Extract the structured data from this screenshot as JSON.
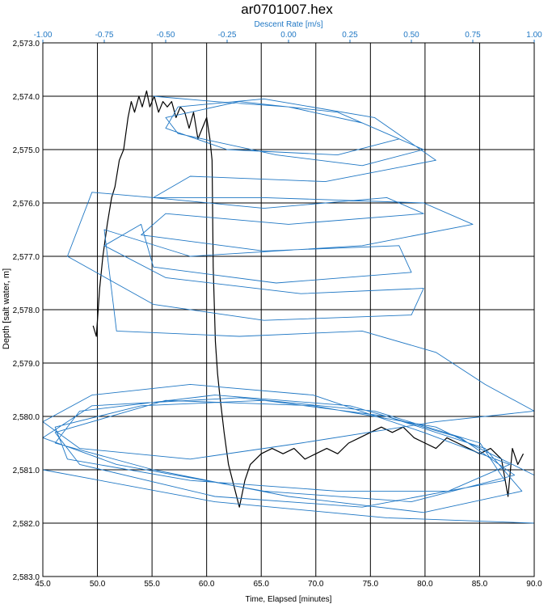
{
  "chart_data": {
    "type": "line",
    "title": "ar0701007.hex",
    "xlabel": "Time, Elapsed [minutes]",
    "ylabel": "Depth [salt water, m]",
    "x2label": "Descent Rate [m/s]",
    "xlim": [
      45.0,
      90.0
    ],
    "ylim": [
      2573.0,
      2583.0
    ],
    "y_inverted": true,
    "x2lim": [
      -1.0,
      1.0
    ],
    "xticks": [
      "45.0",
      "50.0",
      "55.0",
      "60.0",
      "65.0",
      "70.0",
      "75.0",
      "80.0",
      "85.0",
      "90.0"
    ],
    "yticks": [
      "2,573.0",
      "2,574.0",
      "2,575.0",
      "2,576.0",
      "2,577.0",
      "2,578.0",
      "2,579.0",
      "2,580.0",
      "2,581.0",
      "2,582.0",
      "2,583.0"
    ],
    "x2ticks": [
      "-1.00",
      "-0.75",
      "-0.50",
      "-0.25",
      "0.00",
      "0.25",
      "0.50",
      "0.75",
      "1.00"
    ],
    "grid": true,
    "series": [
      {
        "color": "#000000",
        "axis": "bottom",
        "points": [
          [
            49.6,
            2578.3
          ],
          [
            49.9,
            2578.5
          ],
          [
            50.2,
            2577.6
          ],
          [
            50.5,
            2577.0
          ],
          [
            50.9,
            2576.4
          ],
          [
            51.3,
            2575.9
          ],
          [
            51.6,
            2575.7
          ],
          [
            52.0,
            2575.2
          ],
          [
            52.4,
            2575.0
          ],
          [
            52.8,
            2574.4
          ],
          [
            53.1,
            2574.1
          ],
          [
            53.4,
            2574.3
          ],
          [
            53.8,
            2574.0
          ],
          [
            54.1,
            2574.2
          ],
          [
            54.5,
            2573.9
          ],
          [
            54.8,
            2574.2
          ],
          [
            55.2,
            2574.0
          ],
          [
            55.6,
            2574.3
          ],
          [
            56.0,
            2574.1
          ],
          [
            56.4,
            2574.2
          ],
          [
            56.8,
            2574.1
          ],
          [
            57.2,
            2574.4
          ],
          [
            57.6,
            2574.2
          ],
          [
            58.0,
            2574.3
          ],
          [
            58.4,
            2574.6
          ],
          [
            58.8,
            2574.3
          ],
          [
            59.2,
            2574.8
          ],
          [
            59.6,
            2574.6
          ],
          [
            60.0,
            2574.4
          ],
          [
            60.3,
            2574.8
          ],
          [
            60.5,
            2575.2
          ],
          [
            60.6,
            2577.2
          ],
          [
            60.8,
            2578.6
          ],
          [
            61.0,
            2579.2
          ],
          [
            61.2,
            2579.6
          ],
          [
            61.6,
            2580.3
          ],
          [
            62.0,
            2580.9
          ],
          [
            62.5,
            2581.3
          ],
          [
            63.0,
            2581.7
          ],
          [
            63.5,
            2581.2
          ],
          [
            64.0,
            2580.9
          ],
          [
            65.0,
            2580.7
          ],
          [
            66.0,
            2580.6
          ],
          [
            67.0,
            2580.7
          ],
          [
            68.0,
            2580.6
          ],
          [
            69.0,
            2580.8
          ],
          [
            70.0,
            2580.7
          ],
          [
            71.0,
            2580.6
          ],
          [
            72.0,
            2580.7
          ],
          [
            73.0,
            2580.5
          ],
          [
            74.0,
            2580.4
          ],
          [
            75.0,
            2580.3
          ],
          [
            76.0,
            2580.2
          ],
          [
            77.0,
            2580.3
          ],
          [
            78.0,
            2580.2
          ],
          [
            79.0,
            2580.4
          ],
          [
            80.0,
            2580.5
          ],
          [
            81.0,
            2580.6
          ],
          [
            82.0,
            2580.4
          ],
          [
            83.0,
            2580.5
          ],
          [
            84.0,
            2580.6
          ],
          [
            85.0,
            2580.7
          ],
          [
            86.0,
            2580.6
          ],
          [
            87.0,
            2580.8
          ],
          [
            87.6,
            2581.5
          ],
          [
            88.0,
            2580.6
          ],
          [
            88.5,
            2580.9
          ],
          [
            89.0,
            2580.7
          ]
        ]
      },
      {
        "color": "#1f77c4",
        "axis": "top",
        "points": [
          [
            -0.55,
            2574.0
          ],
          [
            -0.3,
            2574.1
          ],
          [
            0.0,
            2574.2
          ],
          [
            0.3,
            2574.5
          ],
          [
            0.55,
            2575.0
          ],
          [
            0.3,
            2575.3
          ],
          [
            -0.05,
            2575.1
          ],
          [
            -0.45,
            2574.7
          ],
          [
            -0.5,
            2574.4
          ],
          [
            -0.2,
            2574.1
          ],
          [
            0.2,
            2574.3
          ],
          [
            0.45,
            2574.8
          ],
          [
            0.2,
            2575.1
          ],
          [
            -0.25,
            2575.0
          ],
          [
            -0.5,
            2574.6
          ],
          [
            -0.45,
            2574.2
          ],
          [
            -0.1,
            2574.05
          ],
          [
            0.35,
            2574.4
          ],
          [
            0.6,
            2575.2
          ],
          [
            0.15,
            2575.6
          ],
          [
            -0.4,
            2575.5
          ],
          [
            -0.55,
            2575.9
          ],
          [
            -0.1,
            2576.1
          ],
          [
            0.4,
            2575.9
          ],
          [
            0.55,
            2576.2
          ],
          [
            0.0,
            2576.4
          ],
          [
            -0.5,
            2576.2
          ],
          [
            -0.6,
            2576.6
          ],
          [
            -0.1,
            2576.9
          ],
          [
            0.45,
            2576.8
          ],
          [
            0.5,
            2577.3
          ],
          [
            -0.05,
            2577.5
          ],
          [
            -0.55,
            2577.2
          ],
          [
            -0.6,
            2576.4
          ],
          [
            -0.75,
            2576.8
          ],
          [
            -0.5,
            2577.4
          ],
          [
            0.05,
            2577.7
          ],
          [
            0.55,
            2577.6
          ],
          [
            0.5,
            2578.1
          ],
          [
            -0.1,
            2578.2
          ],
          [
            -0.55,
            2577.9
          ],
          [
            -0.9,
            2577.0
          ],
          [
            -0.8,
            2575.8
          ],
          [
            -0.55,
            2575.9
          ],
          [
            -0.1,
            2575.9
          ],
          [
            0.55,
            2576.0
          ],
          [
            0.75,
            2576.4
          ],
          [
            0.3,
            2576.8
          ],
          [
            -0.4,
            2577.0
          ],
          [
            -0.75,
            2576.5
          ],
          [
            -0.7,
            2578.4
          ],
          [
            -0.2,
            2578.5
          ],
          [
            0.3,
            2578.4
          ],
          [
            0.6,
            2578.8
          ],
          [
            0.8,
            2579.4
          ],
          [
            1.0,
            2579.9
          ],
          [
            0.6,
            2580.1
          ],
          [
            0.05,
            2580.5
          ],
          [
            -0.4,
            2580.8
          ],
          [
            -0.85,
            2580.6
          ],
          [
            -1.0,
            2580.1
          ],
          [
            -0.8,
            2579.6
          ],
          [
            -0.4,
            2579.4
          ],
          [
            0.1,
            2579.6
          ],
          [
            0.55,
            2580.3
          ],
          [
            0.9,
            2580.9
          ],
          [
            0.65,
            2581.4
          ],
          [
            0.2,
            2581.4
          ],
          [
            -0.4,
            2581.2
          ],
          [
            -0.9,
            2580.8
          ],
          [
            -0.95,
            2580.2
          ],
          [
            -0.6,
            2579.8
          ],
          [
            -0.1,
            2579.7
          ],
          [
            0.4,
            2580.0
          ],
          [
            0.8,
            2580.6
          ],
          [
            0.95,
            2581.4
          ],
          [
            0.55,
            2581.8
          ],
          [
            0.0,
            2581.5
          ],
          [
            -0.55,
            2581.0
          ],
          [
            -0.95,
            2580.5
          ],
          [
            -0.85,
            2579.9
          ],
          [
            -0.3,
            2579.6
          ],
          [
            0.25,
            2579.8
          ],
          [
            0.7,
            2580.4
          ],
          [
            0.92,
            2581.1
          ],
          [
            0.5,
            2581.6
          ],
          [
            -0.1,
            2581.4
          ],
          [
            -0.7,
            2580.9
          ],
          [
            -1.0,
            2580.4
          ],
          [
            -0.8,
            2579.8
          ],
          [
            -0.2,
            2579.65
          ],
          [
            0.35,
            2579.9
          ],
          [
            0.78,
            2580.5
          ],
          [
            0.88,
            2581.2
          ],
          [
            0.3,
            2581.7
          ],
          [
            -0.3,
            2581.5
          ],
          [
            -0.85,
            2580.9
          ],
          [
            -0.95,
            2580.3
          ],
          [
            -0.5,
            2579.7
          ],
          [
            0.1,
            2579.8
          ],
          [
            0.6,
            2580.2
          ],
          [
            1.0,
            2581.1
          ],
          [
            1.0,
            2582.0
          ],
          [
            0.4,
            2581.9
          ],
          [
            -0.3,
            2581.6
          ],
          [
            -1.0,
            2581.0
          ]
        ]
      }
    ]
  }
}
